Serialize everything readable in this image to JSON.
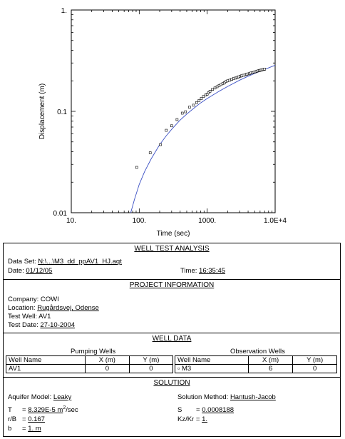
{
  "chart_data": {
    "type": "scatter",
    "xlabel": "Time (sec)",
    "ylabel": "Displacement (m)",
    "xscale": "log",
    "yscale": "log",
    "xlim": [
      10,
      10000
    ],
    "ylim": [
      0.01,
      1
    ],
    "xticks": [
      {
        "value": 10,
        "label": "10."
      },
      {
        "value": 100,
        "label": "100."
      },
      {
        "value": 1000,
        "label": "1000."
      },
      {
        "value": 10000,
        "label": "1.0E+4"
      }
    ],
    "yticks": [
      {
        "value": 0.01,
        "label": "0.01"
      },
      {
        "value": 0.1,
        "label": "0.1"
      },
      {
        "value": 1,
        "label": "1."
      }
    ],
    "series": [
      {
        "kind": "points",
        "marker": "square",
        "color": "#000000",
        "x": [
          92,
          145,
          205,
          250,
          300,
          360,
          430,
          480,
          550,
          630,
          700,
          760,
          820,
          880,
          950,
          1000,
          1050,
          1100,
          1200,
          1300,
          1400,
          1500,
          1600,
          1700,
          1800,
          1900,
          2000,
          2150,
          2300,
          2450,
          2600,
          2750,
          2900,
          3050,
          3200,
          3400,
          3600,
          3800,
          4000,
          4200,
          4400,
          4650,
          4900,
          5150,
          5400,
          5650,
          5900,
          6150,
          6400,
          6700,
          7000
        ],
        "y": [
          0.028,
          0.039,
          0.047,
          0.065,
          0.072,
          0.083,
          0.096,
          0.099,
          0.11,
          0.115,
          0.122,
          0.128,
          0.134,
          0.14,
          0.145,
          0.148,
          0.153,
          0.158,
          0.165,
          0.17,
          0.175,
          0.18,
          0.184,
          0.188,
          0.192,
          0.197,
          0.2,
          0.203,
          0.207,
          0.211,
          0.213,
          0.216,
          0.219,
          0.222,
          0.224,
          0.227,
          0.229,
          0.232,
          0.234,
          0.236,
          0.239,
          0.241,
          0.244,
          0.246,
          0.249,
          0.251,
          0.253,
          0.255,
          0.257,
          0.259,
          0.261
        ]
      },
      {
        "kind": "curve",
        "color": "#3a4fc4",
        "x": [
          75,
          85,
          100,
          120,
          150,
          200,
          250,
          300,
          400,
          500,
          600,
          700,
          800,
          1000,
          1500,
          2000,
          3000,
          4000,
          5000,
          7000,
          10000
        ],
        "y": [
          0.01,
          0.0135,
          0.019,
          0.0255,
          0.034,
          0.047,
          0.0575,
          0.0665,
          0.082,
          0.094,
          0.104,
          0.113,
          0.121,
          0.134,
          0.158,
          0.176,
          0.203,
          0.222,
          0.237,
          0.259,
          0.285
        ]
      }
    ]
  },
  "report": {
    "analysis": {
      "title": "WELL TEST ANALYSIS",
      "data_set_label": "Data Set:",
      "data_set_value": "N:\\...\\M3_dd_ppAV1_HJ.aqt",
      "date_label": "Date:",
      "date_value": "01/12/05",
      "time_label": "Time:",
      "time_value": "16:35:45"
    },
    "project": {
      "title": "PROJECT INFORMATION",
      "company": "Company:  COWI",
      "location_label": "Location:",
      "location_value": "Rugårdsvej, Odense",
      "test_well": "Test Well:  AV1",
      "test_date_label": "Test Date:",
      "test_date_value": "27-10-2004"
    },
    "well_data": {
      "title": "WELL DATA",
      "pumping_title": "Pumping Wells",
      "observation_title": "Observation Wells",
      "col_well_name": "Well Name",
      "col_x": "X (m)",
      "col_y": "Y (m)",
      "pumping_name": "AV1",
      "pumping_x": "0",
      "pumping_y": "0",
      "obs_marker": "▫",
      "obs_name": "M3",
      "obs_x": "6",
      "obs_y": "0"
    },
    "solution": {
      "title": "SOLUTION",
      "aquifer_label": "Aquifer Model:",
      "aquifer_value": "Leaky",
      "method_label": "Solution Method:",
      "method_value": "Hantush-Jacob",
      "T_label": "T",
      "T_value": "8.329E-5 m",
      "T_exp": "2",
      "T_unit": "/sec",
      "S_label": "S",
      "S_value": "0.0008188",
      "rB_label": "r/B",
      "rB_value": "0.167",
      "kz_label": "Kz/Kr",
      "kz_value": "1.",
      "b_label": "b",
      "b_value": "1. m"
    }
  }
}
